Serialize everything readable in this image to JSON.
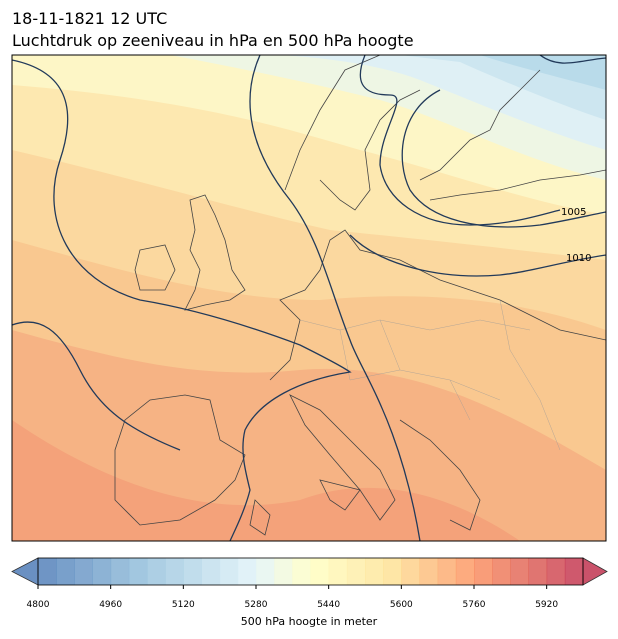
{
  "header": {
    "title": "18-11-1821 12 UTC",
    "subtitle": "Luchtdruk op zeeniveau in hPa en 500 hPa hoogte"
  },
  "contour_labels": [
    "1005",
    "1010"
  ],
  "colorbar": {
    "label": "500 hPa hoogte in meter",
    "lim": [
      4800,
      6000
    ],
    "ticks": [
      4800,
      4960,
      5120,
      5280,
      5440,
      5600,
      5760,
      5920
    ]
  }
}
